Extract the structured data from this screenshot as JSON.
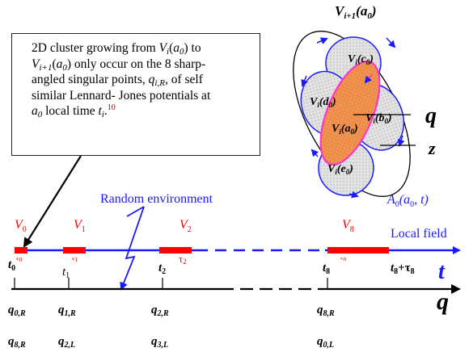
{
  "callout": {
    "lines": [
      [
        "2D cluster growing from ",
        {
          "i": "V"
        },
        {
          "sub": "i"
        },
        "(",
        {
          "i": "a"
        },
        {
          "sub": "0"
        },
        ") to"
      ],
      [
        {
          "i": "V"
        },
        {
          "sub": "i+1"
        },
        "(",
        {
          "i": "a"
        },
        {
          "sub": "0"
        },
        ") only occur on the 8 sharp-"
      ],
      [
        "angled singular points, ",
        {
          "i": "q"
        },
        {
          "sub": "i,R"
        },
        ", of self"
      ],
      [
        "similar Lennard- Jones potentials at"
      ],
      [
        {
          "i": "a"
        },
        {
          "sub": "0"
        },
        " local time ",
        {
          "i": "t"
        },
        {
          "sub": "i"
        },
        ".",
        {
          "sup": "10"
        }
      ]
    ]
  },
  "cluster": {
    "outer_label": "V",
    "outer_sub": "i+1",
    "outer_arg": "(a",
    "outer_arg_sub": "0",
    "outer_close": ")",
    "center": {
      "v": "V",
      "sub": "i",
      "arg": "(a",
      "argsub": "0",
      "close": ")"
    },
    "petals": [
      {
        "v": "V",
        "sub": "i",
        "arg": "(c",
        "argsub": "0",
        "close": ")"
      },
      {
        "v": "V",
        "sub": "i",
        "arg": "(d",
        "argsub": "0",
        "close": ")"
      },
      {
        "v": "V",
        "sub": "i",
        "arg": "(b",
        "argsub": "0",
        "close": ")"
      },
      {
        "v": "V",
        "sub": "i",
        "arg": "(e",
        "argsub": "0",
        "close": ")"
      }
    ],
    "axis_q": "q",
    "axis_z": "z",
    "field": {
      "a": "A",
      "sub": "0",
      "arg": "(a",
      "argsub": "0",
      "rest": ", t)"
    }
  },
  "timeline": {
    "random_env": "Random environment",
    "local_field": "Local field",
    "axis_t": "t",
    "v_labels": [
      {
        "v": "V",
        "sub": "0"
      },
      {
        "v": "V",
        "sub": "1"
      },
      {
        "v": "V",
        "sub": "2"
      },
      {
        "v": "V",
        "sub": "8"
      }
    ],
    "tau_labels": [
      {
        "t": "τ",
        "sub": "0"
      },
      {
        "t": "τ",
        "sub": "1"
      },
      {
        "t": "τ",
        "sub": "2"
      },
      {
        "t": "τ",
        "sub": "8"
      }
    ],
    "ticks": [
      {
        "t": "t",
        "sub": "0",
        "bold": true
      },
      {
        "t": "t",
        "sub": "1",
        "bold": false
      },
      {
        "t": "t",
        "sub": "2",
        "bold": true
      },
      {
        "t": "t",
        "sub": "8",
        "bold": true
      }
    ],
    "end_tick": {
      "t": "t",
      "sub": "8",
      "plus": "+τ",
      "sub2": "8"
    }
  },
  "q_axis": {
    "label": "q",
    "row1": [
      {
        "q": "q",
        "sub": "0,R"
      },
      {
        "q": "q",
        "sub": "1,R"
      },
      {
        "q": "q",
        "sub": "2,R"
      },
      {
        "q": "q",
        "sub": "8,R"
      }
    ],
    "row2": [
      {
        "q": "q",
        "sub": "8,R"
      },
      {
        "q": "q",
        "sub": "2,L"
      },
      {
        "q": "q",
        "sub": "3,L"
      },
      {
        "q": "q",
        "sub": "0,L"
      }
    ]
  },
  "colors": {
    "blue": "#1a1aff",
    "red": "#ff0000",
    "orange": "#f08a50",
    "magenta": "#ff33cc",
    "gray_fill": "#d9d9d9",
    "black": "#000000"
  }
}
